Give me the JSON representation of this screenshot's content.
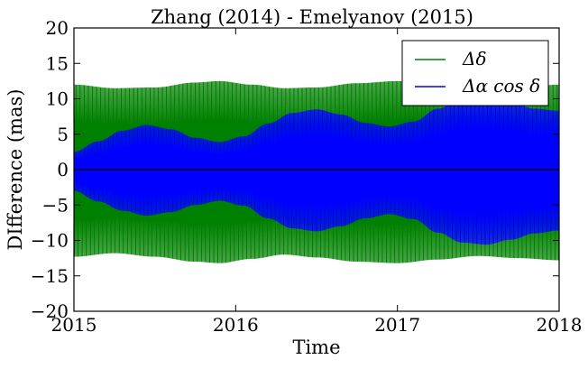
{
  "chart_data": {
    "type": "line",
    "title": "Zhang (2014) - Emelyanov (2015)",
    "xlabel": "Time",
    "ylabel": "DIfference (mas)",
    "xlim": [
      2015,
      2018
    ],
    "ylim": [
      -20,
      20
    ],
    "x_ticks": [
      2015,
      2016,
      2017,
      2018
    ],
    "y_ticks": [
      -20,
      -15,
      -10,
      -5,
      0,
      5,
      10,
      15,
      20
    ],
    "x_tick_labels": [
      "2015",
      "2016",
      "2017",
      "2018"
    ],
    "y_tick_labels": [
      "−20",
      "−15",
      "−10",
      "−5",
      "0",
      "5",
      "10",
      "15",
      "20"
    ],
    "grid": false,
    "legend_position": "top-right",
    "series": [
      {
        "name": "Δδ",
        "color": "#008000",
        "style": "dense-oscillation",
        "envelope": {
          "x": [
            2015.0,
            2015.25,
            2015.5,
            2015.75,
            2015.9,
            2016.1,
            2016.3,
            2016.5,
            2016.75,
            2017.0,
            2017.25,
            2017.5,
            2017.75,
            2018.0
          ],
          "upper": [
            12.0,
            11.5,
            11.6,
            12.3,
            12.5,
            12.0,
            11.5,
            11.6,
            12.2,
            12.5,
            12.2,
            11.6,
            11.6,
            12.0
          ],
          "lower": [
            -12.3,
            -11.8,
            -12.3,
            -13.0,
            -13.2,
            -12.6,
            -12.0,
            -12.4,
            -13.0,
            -13.2,
            -12.7,
            -12.2,
            -12.5,
            -12.8
          ]
        }
      },
      {
        "name": "Δα cos δ",
        "color": "#0000ff",
        "style": "dense-oscillation",
        "envelope": {
          "x": [
            2015.0,
            2015.15,
            2015.3,
            2015.45,
            2015.6,
            2015.75,
            2015.9,
            2016.05,
            2016.2,
            2016.35,
            2016.5,
            2016.65,
            2016.8,
            2016.95,
            2017.1,
            2017.25,
            2017.4,
            2017.55,
            2017.7,
            2017.85,
            2018.0
          ],
          "upper": [
            2.5,
            4.0,
            5.5,
            6.3,
            5.7,
            4.5,
            3.9,
            4.7,
            6.5,
            8.0,
            8.5,
            7.8,
            6.6,
            6.1,
            6.8,
            8.6,
            10.0,
            10.2,
            9.5,
            8.6,
            8.3
          ],
          "lower": [
            -3.0,
            -4.5,
            -5.8,
            -6.5,
            -6.0,
            -5.0,
            -4.4,
            -5.1,
            -6.9,
            -8.3,
            -8.7,
            -8.0,
            -6.9,
            -6.3,
            -7.0,
            -8.9,
            -10.3,
            -10.6,
            -9.9,
            -9.0,
            -8.6
          ]
        }
      }
    ]
  },
  "colors": {
    "zero_line": "#000000",
    "axes": "#000000"
  }
}
